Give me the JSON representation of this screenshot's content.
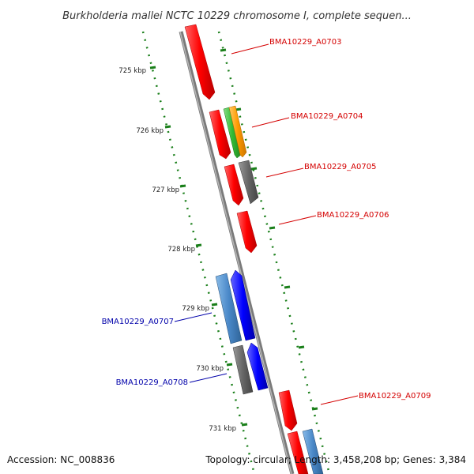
{
  "title": "Burkholderia mallei NCTC 10229 chromosome I, complete sequen...",
  "footer": {
    "accession": "Accession: NC_008836",
    "summary": "Topology: circular; Length: 3,458,208 bp; Genes: 3,384"
  },
  "colors": {
    "backbone": "#888888",
    "tick": "#1a7f1a",
    "gene_forward_label": "#d40000",
    "gene_reverse_label": "#0000aa",
    "red_gene": "#ff0000",
    "orange_gene": "#ff9900",
    "green_gene": "#33bb33",
    "grey_gene": "#666666",
    "blue_gene": "#0000ff",
    "steelblue_gene": "#4a88c8"
  },
  "kbp_labels": [
    "725 kbp",
    "726 kbp",
    "727 kbp",
    "728 kbp",
    "729 kbp",
    "730 kbp",
    "731 kbp"
  ],
  "gene_labels": [
    {
      "name": "BMA10229_A0703",
      "strand": "forward"
    },
    {
      "name": "BMA10229_A0704",
      "strand": "forward"
    },
    {
      "name": "BMA10229_A0705",
      "strand": "forward"
    },
    {
      "name": "BMA10229_A0706",
      "strand": "forward"
    },
    {
      "name": "BMA10229_A0707",
      "strand": "reverse"
    },
    {
      "name": "BMA10229_A0708",
      "strand": "reverse"
    },
    {
      "name": "BMA10229_A0709",
      "strand": "forward"
    }
  ]
}
